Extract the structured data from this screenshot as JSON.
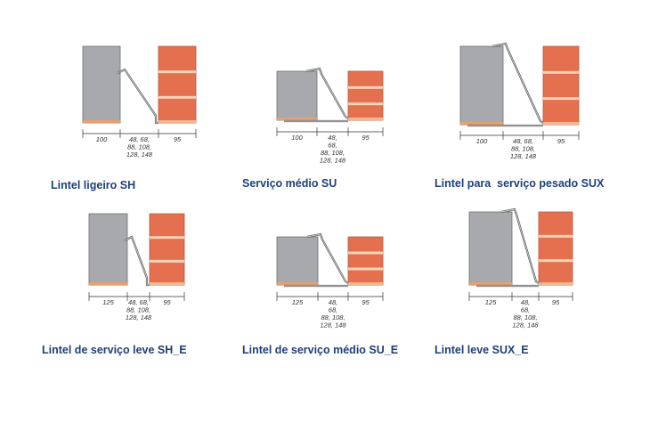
{
  "panels": [
    {
      "label": "Lintel ligeiro SH",
      "left": "100",
      "cavity": [
        "48, 68,",
        "88, 108,",
        "128, 148"
      ],
      "right": "95"
    },
    {
      "label": "Serviço médio SU",
      "left": "100",
      "cavity": [
        "48,",
        "68,",
        "88, 108,",
        "128, 148"
      ],
      "right": "95"
    },
    {
      "label": "Lintel para  serviço pesado SUX",
      "left": "100",
      "cavity": [
        "48, 68,",
        "88, 108,",
        "128, 148"
      ],
      "right": "95"
    },
    {
      "label": "Lintel de serviço leve SH_E",
      "left": "125",
      "cavity": [
        "48, 68,",
        "88, 108,",
        "128, 148"
      ],
      "right": "95"
    },
    {
      "label": "Lintel de serviço médio SU_E",
      "left": "125",
      "cavity": [
        "48,",
        "68,",
        "88, 108,",
        "128, 148"
      ],
      "right": "95"
    },
    {
      "label": "Lintel leve SUX_E",
      "left": "125",
      "cavity": [
        "48,",
        "68,",
        "88, 108,",
        "128, 148"
      ],
      "right": "95"
    }
  ]
}
